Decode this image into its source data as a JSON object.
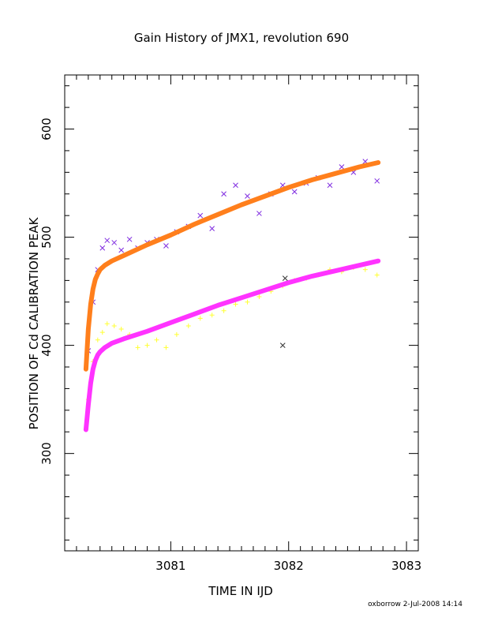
{
  "chart_data": {
    "type": "scatter",
    "title": "Gain History of JMX1, revolution 690",
    "xlabel": "TIME IN IJD",
    "ylabel": "POSITION OF Cd CALIBRATION PEAK",
    "xlim": [
      3080.1,
      3083.1
    ],
    "ylim": [
      210,
      650
    ],
    "x_ticks": [
      3081,
      3082,
      3083
    ],
    "x_tick_labels": [
      "3081",
      "3082",
      "3083"
    ],
    "y_ticks": [
      300,
      400,
      500,
      600
    ],
    "y_tick_labels": [
      "300",
      "400",
      "500",
      "600"
    ],
    "grid": false,
    "credit": "oxborrow  2-Jul-2008 14:14",
    "colors": {
      "series_1_points": "#7f2be0",
      "series_1_fit": "#ff7f1c",
      "series_2_points": "#ffff33",
      "series_2_fit": "#ff33ff",
      "outlier": "#333333"
    },
    "series": [
      {
        "marker": "x",
        "color": "#7f2be0",
        "x": [
          3080.3,
          3080.34,
          3080.38,
          3080.42,
          3080.46,
          3080.52,
          3080.58,
          3080.65,
          3080.72,
          3080.8,
          3080.88,
          3080.96,
          3081.05,
          3081.15,
          3081.25,
          3081.35,
          3081.45,
          3081.55,
          3081.65,
          3081.75,
          3081.85,
          3081.95,
          3082.05,
          3082.15,
          3082.25,
          3082.35,
          3082.45,
          3082.55,
          3082.65,
          3082.75
        ],
        "y": [
          395,
          440,
          470,
          490,
          497,
          495,
          488,
          498,
          490,
          495,
          498,
          492,
          505,
          510,
          520,
          508,
          540,
          548,
          538,
          522,
          540,
          548,
          542,
          550,
          555,
          548,
          565,
          560,
          570,
          552
        ]
      },
      {
        "marker": "line",
        "color": "#ff7f1c",
        "x": [
          3080.28,
          3080.3,
          3080.32,
          3080.34,
          3080.36,
          3080.38,
          3080.4,
          3080.44,
          3080.5,
          3080.6,
          3080.8,
          3081.0,
          3081.2,
          3081.4,
          3081.6,
          3081.8,
          3082.0,
          3082.2,
          3082.4,
          3082.6,
          3082.76
        ],
        "y": [
          378,
          415,
          438,
          452,
          461,
          466,
          470,
          474,
          478,
          483,
          493,
          502,
          512,
          521,
          530,
          538,
          546,
          553,
          559,
          565,
          569
        ]
      },
      {
        "marker": "+",
        "color": "#ffff33",
        "x": [
          3080.3,
          3080.34,
          3080.38,
          3080.42,
          3080.46,
          3080.52,
          3080.58,
          3080.65,
          3080.72,
          3080.8,
          3080.88,
          3080.96,
          3081.05,
          3081.15,
          3081.25,
          3081.35,
          3081.45,
          3081.55,
          3081.65,
          3081.75,
          3081.85,
          3081.95,
          3082.05,
          3082.15,
          3082.25,
          3082.35,
          3082.45,
          3082.55,
          3082.65,
          3082.75
        ],
        "y": [
          350,
          385,
          405,
          412,
          420,
          418,
          415,
          410,
          398,
          400,
          405,
          398,
          410,
          418,
          425,
          428,
          432,
          438,
          440,
          445,
          450,
          455,
          460,
          462,
          465,
          470,
          468,
          472,
          470,
          465
        ]
      },
      {
        "marker": "line",
        "color": "#ff33ff",
        "x": [
          3080.28,
          3080.3,
          3080.32,
          3080.34,
          3080.36,
          3080.38,
          3080.4,
          3080.44,
          3080.5,
          3080.6,
          3080.8,
          3081.0,
          3081.2,
          3081.4,
          3081.6,
          3081.8,
          3082.0,
          3082.2,
          3082.4,
          3082.6,
          3082.76
        ],
        "y": [
          322,
          345,
          365,
          378,
          386,
          391,
          394,
          398,
          402,
          406,
          413,
          421,
          429,
          437,
          444,
          451,
          458,
          464,
          469,
          474,
          478
        ]
      },
      {
        "marker": "x",
        "color": "#333333",
        "x": [
          3081.97,
          3081.95
        ],
        "y": [
          462,
          400
        ]
      }
    ]
  }
}
